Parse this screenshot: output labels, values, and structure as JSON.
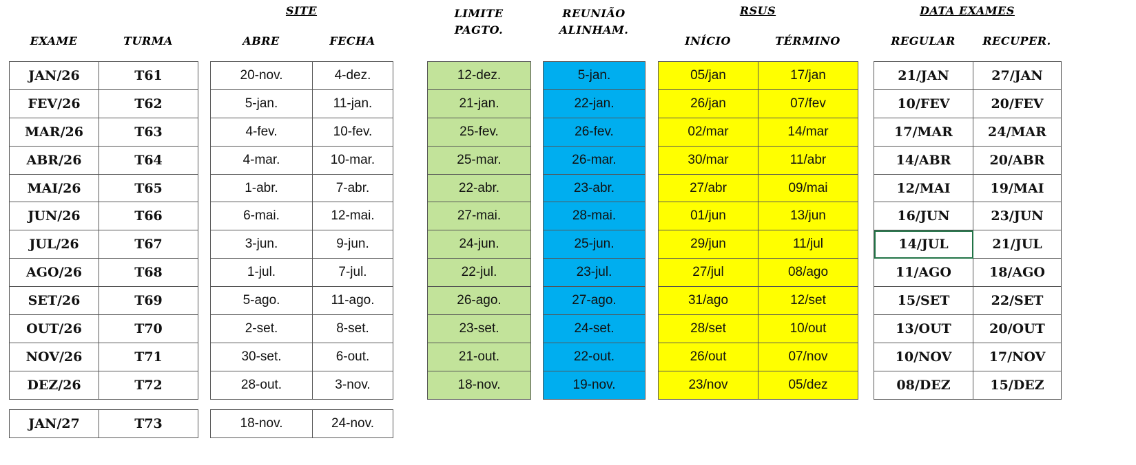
{
  "headers": {
    "exame": "EXAME",
    "turma": "TURMA",
    "site": "SITE",
    "abre": "ABRE",
    "fecha": "FECHA",
    "limite_line1": "LIMITE",
    "limite_line2": "PAGTO.",
    "reuniao_line1": "REUNIÃO",
    "reuniao_line2": "ALINHAM.",
    "rsus": "RSUS",
    "inicio": "INÍCIO",
    "termino": "TÉRMINO",
    "data_exames": "DATA EXAMES",
    "regular": "REGULAR",
    "recuper": "RECUPER."
  },
  "colors": {
    "limite": "#c2e39a",
    "reuniao": "#00aeef",
    "rsus": "#ffff00",
    "selection": "#217346"
  },
  "rows": [
    {
      "exame": "JAN/26",
      "turma": "T61",
      "abre": "20-nov.",
      "fecha": "4-dez.",
      "limite": "12-dez.",
      "reuniao": "5-jan.",
      "inicio": "05/jan",
      "termino": "17/jan",
      "regular": "21/JAN",
      "recuper": "27/JAN"
    },
    {
      "exame": "FEV/26",
      "turma": "T62",
      "abre": "5-jan.",
      "fecha": "11-jan.",
      "limite": "21-jan.",
      "reuniao": "22-jan.",
      "inicio": "26/jan",
      "termino": "07/fev",
      "regular": "10/FEV",
      "recuper": "20/FEV"
    },
    {
      "exame": "MAR/26",
      "turma": "T63",
      "abre": "4-fev.",
      "fecha": "10-fev.",
      "limite": "25-fev.",
      "reuniao": "26-fev.",
      "inicio": "02/mar",
      "termino": "14/mar",
      "regular": "17/MAR",
      "recuper": "24/MAR"
    },
    {
      "exame": "ABR/26",
      "turma": "T64",
      "abre": "4-mar.",
      "fecha": "10-mar.",
      "limite": "25-mar.",
      "reuniao": "26-mar.",
      "inicio": "30/mar",
      "termino": "11/abr",
      "regular": "14/ABR",
      "recuper": "20/ABR"
    },
    {
      "exame": "MAI/26",
      "turma": "T65",
      "abre": "1-abr.",
      "fecha": "7-abr.",
      "limite": "22-abr.",
      "reuniao": "23-abr.",
      "inicio": "27/abr",
      "termino": "09/mai",
      "regular": "12/MAI",
      "recuper": "19/MAI"
    },
    {
      "exame": "JUN/26",
      "turma": "T66",
      "abre": "6-mai.",
      "fecha": "12-mai.",
      "limite": "27-mai.",
      "reuniao": "28-mai.",
      "inicio": "01/jun",
      "termino": "13/jun",
      "regular": "16/JUN",
      "recuper": "23/JUN"
    },
    {
      "exame": "JUL/26",
      "turma": "T67",
      "abre": "3-jun.",
      "fecha": "9-jun.",
      "limite": "24-jun.",
      "reuniao": "25-jun.",
      "inicio": "29/jun",
      "termino": "11/jul",
      "regular": "14/JUL",
      "recuper": "21/JUL"
    },
    {
      "exame": "AGO/26",
      "turma": "T68",
      "abre": "1-jul.",
      "fecha": "7-jul.",
      "limite": "22-jul.",
      "reuniao": "23-jul.",
      "inicio": "27/jul",
      "termino": "08/ago",
      "regular": "11/AGO",
      "recuper": "18/AGO"
    },
    {
      "exame": "SET/26",
      "turma": "T69",
      "abre": "5-ago.",
      "fecha": "11-ago.",
      "limite": "26-ago.",
      "reuniao": "27-ago.",
      "inicio": "31/ago",
      "termino": "12/set",
      "regular": "15/SET",
      "recuper": "22/SET"
    },
    {
      "exame": "OUT/26",
      "turma": "T70",
      "abre": "2-set.",
      "fecha": "8-set.",
      "limite": "23-set.",
      "reuniao": "24-set.",
      "inicio": "28/set",
      "termino": "10/out",
      "regular": "13/OUT",
      "recuper": "20/OUT"
    },
    {
      "exame": "NOV/26",
      "turma": "T71",
      "abre": "30-set.",
      "fecha": "6-out.",
      "limite": "21-out.",
      "reuniao": "22-out.",
      "inicio": "26/out",
      "termino": "07/nov",
      "regular": "10/NOV",
      "recuper": "17/NOV"
    },
    {
      "exame": "DEZ/26",
      "turma": "T72",
      "abre": "28-out.",
      "fecha": "3-nov.",
      "limite": "18-nov.",
      "reuniao": "19-nov.",
      "inicio": "23/nov",
      "termino": "05/dez",
      "regular": "08/DEZ",
      "recuper": "15/DEZ"
    }
  ],
  "extra_row": {
    "exame": "JAN/27",
    "turma": "T73",
    "abre": "18-nov.",
    "fecha": "24-nov."
  },
  "selected_cell": {
    "row": 6,
    "column": "regular"
  }
}
